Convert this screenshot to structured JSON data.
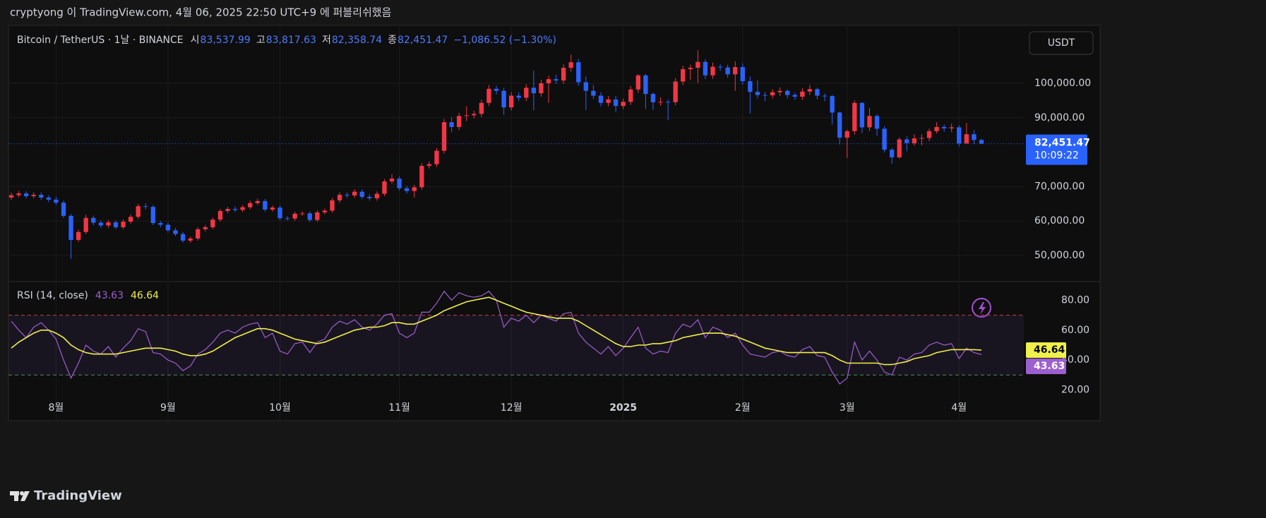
{
  "header": {
    "text": "cryptyong 이 TradingView.com, 4월 06, 2025 22:50 UTC+9 에 퍼블리쉬했음"
  },
  "footer": {
    "brand": "TradingView"
  },
  "chart_data": [
    {
      "type": "candlestick",
      "title": "Bitcoin / TetherUS · 1날 · BINANCE",
      "currency": "USDT",
      "legend": [
        {
          "key": "시",
          "value": "83,537.99"
        },
        {
          "key": "고",
          "value": "83,817.63"
        },
        {
          "key": "저",
          "value": "82,358.74"
        },
        {
          "key": "종",
          "value": "82,451.47"
        }
      ],
      "change": "−1,086.52 (−1.30%)",
      "last_price_label": "82,451.47",
      "countdown": "10:09:22",
      "up_color": "#f23645",
      "down_color": "#2962ff",
      "categories": [
        null,
        null,
        null,
        null,
        null,
        null,
        "8월",
        null,
        null,
        null,
        null,
        null,
        null,
        null,
        null,
        null,
        null,
        null,
        null,
        null,
        null,
        "9월",
        null,
        null,
        null,
        null,
        null,
        null,
        null,
        null,
        null,
        null,
        null,
        null,
        null,
        null,
        "10월",
        null,
        null,
        null,
        null,
        null,
        null,
        null,
        null,
        null,
        null,
        null,
        null,
        null,
        null,
        null,
        "11월",
        null,
        null,
        null,
        null,
        null,
        null,
        null,
        null,
        null,
        null,
        null,
        null,
        null,
        null,
        "12월",
        null,
        null,
        null,
        null,
        null,
        null,
        null,
        null,
        null,
        null,
        null,
        null,
        null,
        null,
        "2025",
        null,
        null,
        null,
        null,
        null,
        null,
        null,
        null,
        null,
        null,
        null,
        null,
        null,
        null,
        null,
        "2월",
        null,
        null,
        null,
        null,
        null,
        null,
        null,
        null,
        null,
        null,
        null,
        null,
        null,
        "3월",
        null,
        null,
        null,
        null,
        null,
        null,
        null,
        null,
        null,
        null,
        null,
        null,
        null,
        null,
        "4월",
        null,
        null,
        null
      ],
      "open": [
        66800,
        67500,
        68000,
        67200,
        67600,
        66800,
        66200,
        65300,
        61500,
        54500,
        56800,
        60900,
        59500,
        58700,
        59600,
        58200,
        59800,
        61200,
        64300,
        64100,
        59400,
        58900,
        57300,
        56200,
        54300,
        54900,
        57600,
        58200,
        60400,
        62900,
        63500,
        63200,
        64000,
        65200,
        65800,
        63300,
        63900,
        60800,
        60700,
        62100,
        62200,
        60300,
        62500,
        63000,
        66000,
        67600,
        67400,
        68500,
        67000,
        66600,
        67900,
        71500,
        72300,
        69500,
        68700,
        69800,
        76000,
        76500,
        80400,
        88700,
        87300,
        90500,
        90700,
        91100,
        94300,
        98400,
        97800,
        93000,
        96400,
        95800,
        98700,
        97100,
        100000,
        101200,
        100800,
        104500,
        106100,
        100300,
        97800,
        96400,
        94300,
        95300,
        93400,
        94600,
        98200,
        102300,
        96900,
        94500,
        94600,
        94500,
        100500,
        104100,
        104500,
        106200,
        102300,
        104800,
        104600,
        102600,
        104700,
        100600,
        97500,
        96600,
        96500,
        97400,
        97800,
        96600,
        96100,
        97600,
        98300,
        96400,
        96300,
        91500,
        84200,
        86100,
        94300,
        87200,
        90500,
        86800,
        80700,
        78500,
        83700,
        82600,
        84000,
        84100,
        86100,
        87300,
        86900,
        87200,
        82500,
        85200,
        83537.99
      ],
      "high": [
        68200,
        68700,
        68600,
        68300,
        68300,
        67500,
        67100,
        65900,
        62000,
        57500,
        61800,
        61600,
        60200,
        60300,
        60200,
        60500,
        61900,
        65000,
        65100,
        64600,
        60000,
        59500,
        58000,
        56800,
        55500,
        58200,
        58800,
        61000,
        63500,
        64100,
        64200,
        64600,
        65900,
        66500,
        66400,
        64500,
        64500,
        61400,
        62700,
        62800,
        62800,
        63100,
        63600,
        66700,
        68300,
        68300,
        69200,
        69200,
        67700,
        68600,
        72200,
        73600,
        73000,
        70200,
        70500,
        76800,
        77300,
        81200,
        89600,
        90200,
        91400,
        93300,
        92000,
        95200,
        99500,
        99300,
        98700,
        97400,
        97400,
        99700,
        103700,
        101000,
        102200,
        102500,
        105500,
        108300,
        107100,
        102000,
        99500,
        97400,
        96300,
        96300,
        95500,
        99200,
        102700,
        102700,
        97300,
        95900,
        95300,
        101500,
        105100,
        105400,
        109600,
        107000,
        106000,
        105500,
        105400,
        106400,
        105800,
        102000,
        100900,
        97500,
        98300,
        98800,
        98200,
        97300,
        98600,
        99500,
        98700,
        97000,
        96600,
        91800,
        86500,
        95000,
        94500,
        92800,
        91000,
        87500,
        81200,
        84300,
        84600,
        85200,
        85200,
        86800,
        88700,
        88000,
        88300,
        87800,
        88500,
        86400,
        83817.63
      ],
      "low": [
        66100,
        66900,
        66500,
        66600,
        66100,
        65500,
        64600,
        60900,
        49000,
        53900,
        56200,
        58800,
        58000,
        58000,
        57600,
        57600,
        59200,
        60600,
        63400,
        58800,
        58200,
        56700,
        55600,
        53700,
        53700,
        54300,
        57000,
        57600,
        59800,
        62300,
        62600,
        62600,
        63400,
        64600,
        62700,
        62700,
        60200,
        60100,
        60100,
        61500,
        59700,
        59700,
        61900,
        62400,
        65300,
        66700,
        66700,
        66300,
        65900,
        65900,
        67200,
        70800,
        68800,
        68000,
        66800,
        69100,
        75200,
        75700,
        79600,
        85800,
        86400,
        89000,
        89800,
        90200,
        93400,
        96800,
        90800,
        92100,
        94900,
        94800,
        92100,
        96100,
        94300,
        99800,
        99800,
        103400,
        99300,
        92200,
        95400,
        93300,
        93300,
        91600,
        92500,
        93700,
        97200,
        92500,
        92200,
        93500,
        89300,
        93600,
        99500,
        101000,
        100100,
        101200,
        101300,
        103600,
        101600,
        97800,
        99600,
        91200,
        95600,
        94800,
        95600,
        96300,
        95600,
        95200,
        95200,
        96600,
        95300,
        94800,
        88000,
        82200,
        78300,
        85100,
        85500,
        86100,
        84700,
        79900,
        76600,
        78100,
        80300,
        81900,
        82000,
        83200,
        85400,
        85900,
        85800,
        81600,
        82300,
        82300,
        82358.74
      ],
      "close": [
        67500,
        68000,
        67200,
        67600,
        66800,
        66200,
        65300,
        61500,
        54500,
        56800,
        60900,
        59500,
        58700,
        59600,
        58200,
        59800,
        61200,
        64300,
        64100,
        59400,
        58900,
        57300,
        56200,
        54300,
        54900,
        57600,
        58200,
        60400,
        62900,
        63500,
        63200,
        64000,
        65200,
        65800,
        63300,
        63900,
        60800,
        60700,
        62100,
        62200,
        60300,
        62500,
        63000,
        66000,
        67600,
        67400,
        68500,
        67000,
        66600,
        67900,
        71500,
        72300,
        69500,
        68700,
        69800,
        76000,
        76500,
        80400,
        88700,
        87300,
        90500,
        90700,
        91100,
        94300,
        98400,
        97800,
        93000,
        96400,
        95800,
        98700,
        97100,
        100000,
        101200,
        100800,
        104500,
        106100,
        100300,
        97800,
        96400,
        94300,
        95300,
        93400,
        94600,
        98200,
        102300,
        96900,
        94500,
        94600,
        94500,
        100500,
        104100,
        104500,
        106200,
        102300,
        104800,
        104600,
        102600,
        104700,
        100600,
        97500,
        96600,
        96500,
        97400,
        97800,
        96600,
        96100,
        97600,
        98300,
        96400,
        96300,
        91500,
        84200,
        86100,
        94300,
        87200,
        90500,
        86800,
        80700,
        78500,
        83700,
        82600,
        84000,
        84100,
        86100,
        87300,
        86900,
        87200,
        82500,
        85200,
        83537.99,
        82451.47
      ],
      "ylim": [
        42600,
        116400
      ],
      "yticks": [
        {
          "value": 50000,
          "label": "50,000.00"
        },
        {
          "value": 60000,
          "label": "60,000.00"
        },
        {
          "value": 70000,
          "label": "70,000.00"
        },
        {
          "value": 90000,
          "label": "90,000.00"
        },
        {
          "value": 100000,
          "label": "100,000.00"
        }
      ],
      "grid": true
    },
    {
      "type": "line",
      "title": "RSI (14, close)",
      "bands": [
        30,
        70
      ],
      "band_color": "#7e57c2",
      "series": [
        {
          "color": "#9c5fd0",
          "last_label": "43.63",
          "values": [
            66,
            60,
            55,
            62,
            65,
            60,
            54,
            40,
            28,
            38,
            50,
            46,
            44,
            49,
            42,
            48,
            53,
            61,
            59,
            45,
            44,
            40,
            38,
            33,
            36,
            44,
            47,
            52,
            58,
            60,
            58,
            62,
            64,
            65,
            55,
            58,
            46,
            44,
            51,
            52,
            45,
            52,
            54,
            62,
            66,
            64,
            67,
            62,
            60,
            64,
            70,
            71,
            58,
            55,
            58,
            72,
            72,
            78,
            86,
            80,
            85,
            83,
            82,
            83,
            86,
            80,
            62,
            68,
            66,
            70,
            65,
            70,
            68,
            66,
            71,
            72,
            58,
            52,
            48,
            44,
            49,
            43,
            48,
            55,
            62,
            48,
            44,
            46,
            45,
            58,
            64,
            62,
            67,
            55,
            62,
            60,
            55,
            58,
            50,
            44,
            43,
            42,
            45,
            46,
            43,
            42,
            47,
            49,
            43,
            42,
            32,
            24,
            28,
            52,
            40,
            46,
            40,
            32,
            30,
            42,
            40,
            44,
            45,
            50,
            52,
            50,
            51,
            41,
            48,
            45,
            43.63
          ]
        },
        {
          "color": "#f0f04a",
          "last_label": "46.64",
          "values": [
            48,
            52,
            55,
            58,
            60,
            60,
            58,
            55,
            50,
            47,
            45,
            44,
            44,
            44,
            44,
            45,
            46,
            47,
            48,
            48,
            48,
            47,
            46,
            44,
            43,
            43,
            44,
            46,
            49,
            52,
            55,
            57,
            59,
            61,
            61,
            60,
            58,
            56,
            54,
            53,
            52,
            51,
            52,
            54,
            56,
            58,
            60,
            61,
            62,
            62,
            63,
            65,
            65,
            64,
            64,
            66,
            68,
            70,
            73,
            75,
            77,
            79,
            80,
            81,
            82,
            80,
            78,
            76,
            74,
            72,
            71,
            70,
            69,
            68,
            68,
            68,
            66,
            63,
            60,
            57,
            54,
            51,
            49,
            49,
            50,
            50,
            51,
            51,
            52,
            53,
            55,
            56,
            57,
            58,
            58,
            58,
            57,
            56,
            54,
            52,
            50,
            48,
            47,
            46,
            45,
            45,
            45,
            45,
            45,
            45,
            43,
            40,
            38,
            38,
            38,
            38,
            38,
            37,
            37,
            38,
            39,
            41,
            42,
            43,
            45,
            46,
            47,
            47,
            47,
            47,
            46.64
          ]
        }
      ],
      "ylim": [
        0,
        92
      ],
      "yticks": [
        {
          "value": 20,
          "label": "20.00"
        },
        {
          "value": 40,
          "label": "40.00"
        },
        {
          "value": 60,
          "label": "60.00"
        },
        {
          "value": 80,
          "label": "80.00"
        }
      ],
      "grid": true
    }
  ]
}
